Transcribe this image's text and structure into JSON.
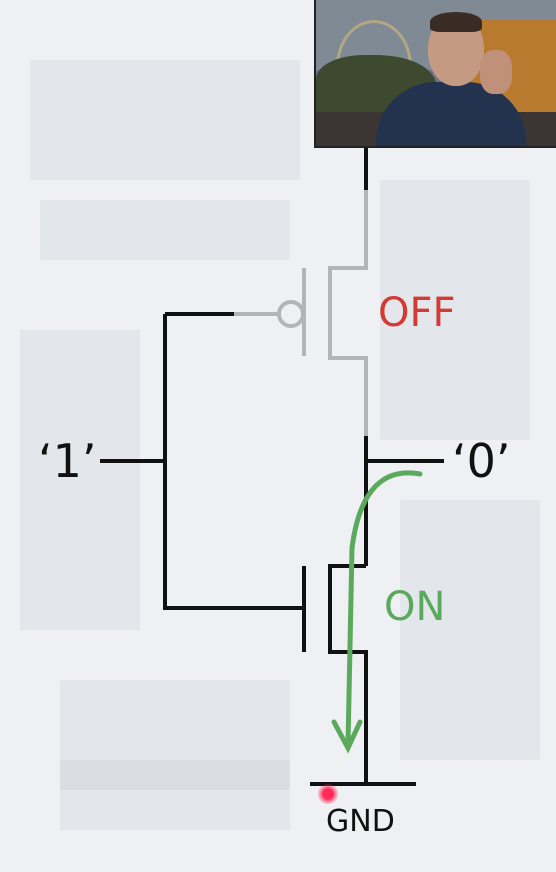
{
  "diagram": {
    "input_label": "‘1’",
    "output_label": "‘0’",
    "pmos_state": "OFF",
    "nmos_state": "ON",
    "ground_label": "GND"
  },
  "colors": {
    "wire": "#111111",
    "inactive_wire": "#b4b4b4",
    "off_state": "#d23a33",
    "on_state": "#5aa95c",
    "background": "#eef0f3"
  },
  "webcam": {
    "icon": "presenter-webcam-video"
  },
  "pointer": {
    "icon": "red-laser-pointer-dot"
  }
}
